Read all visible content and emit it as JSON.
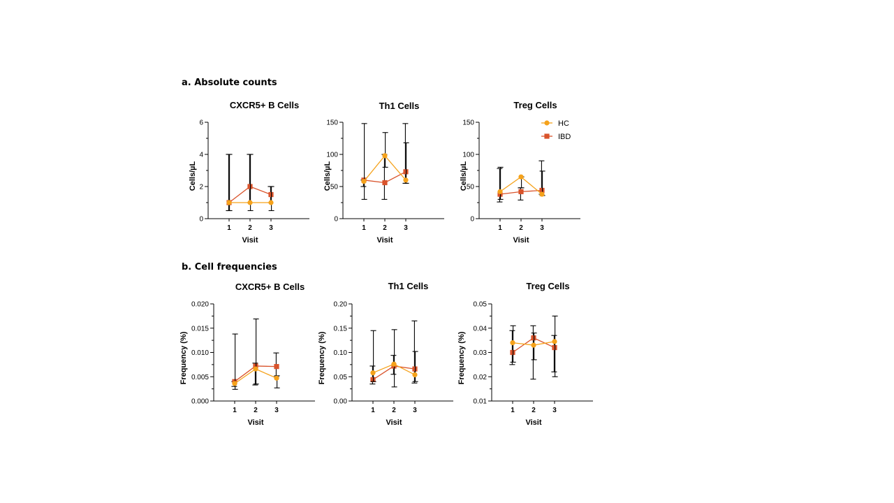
{
  "sections": {
    "a": {
      "label": "a. Absolute counts"
    },
    "b": {
      "label": "b. Cell frequencies"
    }
  },
  "legend": {
    "placement": "top-right",
    "items": [
      {
        "name": "HC",
        "color": "#F5A21B",
        "marker": "circle"
      },
      {
        "name": "IBD",
        "color": "#D9532B",
        "marker": "square"
      }
    ]
  },
  "colors": {
    "HC": "#F5A21B",
    "IBD": "#D9532B",
    "axis": "#000000",
    "errorbar": "#000000"
  },
  "chart_data": [
    {
      "id": "a-b",
      "type": "line",
      "title": "CXCR5+ B Cells",
      "xlabel": "Visit",
      "ylabel": "Cells/µL",
      "x": [
        1,
        2,
        3
      ],
      "ylim": [
        0,
        6
      ],
      "yticks": [
        0,
        2,
        4,
        6
      ],
      "ytick_labels": [
        "0",
        "2",
        "4",
        "6"
      ],
      "grid": false,
      "series": [
        {
          "name": "HC",
          "values": [
            1,
            1,
            1
          ],
          "err_low": [
            0.5,
            0.5,
            0.5
          ],
          "err_high": [
            4,
            4,
            2
          ]
        },
        {
          "name": "IBD",
          "values": [
            1,
            2,
            1.5
          ],
          "err_low": [
            0.5,
            1,
            1
          ],
          "err_high": [
            4,
            4,
            2
          ]
        }
      ]
    },
    {
      "id": "a-th1",
      "type": "line",
      "title": "Th1 Cells",
      "xlabel": "Visit",
      "ylabel": "Cells/µL",
      "x": [
        1,
        2,
        3
      ],
      "ylim": [
        0,
        150
      ],
      "yticks": [
        0,
        50,
        100,
        150
      ],
      "ytick_labels": [
        "0",
        "50",
        "100",
        "150"
      ],
      "grid": false,
      "series": [
        {
          "name": "HC",
          "values": [
            58,
            98,
            60
          ],
          "err_low": [
            30,
            80,
            55
          ],
          "err_high": [
            148,
            134,
            118
          ]
        },
        {
          "name": "IBD",
          "values": [
            60,
            56,
            73
          ],
          "err_low": [
            50,
            30,
            55
          ],
          "err_high": [
            60,
            100,
            148
          ]
        }
      ]
    },
    {
      "id": "a-treg",
      "type": "line",
      "title": "Treg Cells",
      "xlabel": "Visit",
      "ylabel": "Cells/µL",
      "x": [
        1,
        2,
        3
      ],
      "ylim": [
        0,
        150
      ],
      "yticks": [
        0,
        50,
        100,
        150
      ],
      "ytick_labels": [
        "0",
        "50",
        "100",
        "150"
      ],
      "grid": false,
      "series": [
        {
          "name": "HC",
          "values": [
            42,
            65,
            38
          ],
          "err_low": [
            30,
            48,
            36
          ],
          "err_high": [
            80,
            65,
            74
          ]
        },
        {
          "name": "IBD",
          "values": [
            38,
            42,
            44
          ],
          "err_low": [
            26,
            29,
            38
          ],
          "err_high": [
            78,
            48,
            90
          ]
        }
      ]
    },
    {
      "id": "b-b",
      "type": "line",
      "title": "CXCR5+ B Cells",
      "xlabel": "Visit",
      "ylabel": "Frequency (%)",
      "x": [
        1,
        2,
        3
      ],
      "ylim": [
        0,
        0.02
      ],
      "yticks": [
        0,
        0.005,
        0.01,
        0.015,
        0.02
      ],
      "ytick_labels": [
        "0.000",
        "0.005",
        "0.010",
        "0.015",
        "0.020"
      ],
      "grid": false,
      "series": [
        {
          "name": "HC",
          "values": [
            0.0036,
            0.0066,
            0.0047
          ],
          "err_low": [
            0.0024,
            0.0035,
            0.0027
          ],
          "err_high": [
            0.0138,
            0.0169,
            0.0052
          ]
        },
        {
          "name": "IBD",
          "values": [
            0.004,
            0.0072,
            0.0071
          ],
          "err_low": [
            0.003,
            0.0033,
            0.005
          ],
          "err_high": [
            0.004,
            0.0078,
            0.0099
          ]
        }
      ]
    },
    {
      "id": "b-th1",
      "type": "line",
      "title": "Th1 Cells",
      "xlabel": "Visit",
      "ylabel": "Frequency (%)",
      "x": [
        1,
        2,
        3
      ],
      "ylim": [
        0,
        0.2
      ],
      "yticks": [
        0,
        0.05,
        0.1,
        0.15,
        0.2
      ],
      "ytick_labels": [
        "0.00",
        "0.05",
        "0.10",
        "0.15",
        "0.20"
      ],
      "grid": false,
      "series": [
        {
          "name": "HC",
          "values": [
            0.058,
            0.076,
            0.054
          ],
          "err_low": [
            0.04,
            0.029,
            0.04
          ],
          "err_high": [
            0.145,
            0.147,
            0.102
          ]
        },
        {
          "name": "IBD",
          "values": [
            0.044,
            0.072,
            0.066
          ],
          "err_low": [
            0.035,
            0.055,
            0.037
          ],
          "err_high": [
            0.072,
            0.094,
            0.165
          ]
        }
      ]
    },
    {
      "id": "b-treg",
      "type": "line",
      "title": "Treg Cells",
      "xlabel": "Visit",
      "ylabel": "Frequency (%)",
      "x": [
        1,
        2,
        3
      ],
      "ylim": [
        0.01,
        0.05
      ],
      "yticks": [
        0.01,
        0.02,
        0.03,
        0.04,
        0.05
      ],
      "ytick_labels": [
        "0.01",
        "0.02",
        "0.03",
        "0.04",
        "0.05"
      ],
      "grid": false,
      "series": [
        {
          "name": "HC",
          "values": [
            0.034,
            0.033,
            0.0345
          ],
          "err_low": [
            0.026,
            0.027,
            0.02
          ],
          "err_high": [
            0.041,
            0.038,
            0.045
          ]
        },
        {
          "name": "IBD",
          "values": [
            0.03,
            0.036,
            0.032
          ],
          "err_low": [
            0.025,
            0.019,
            0.022
          ],
          "err_high": [
            0.039,
            0.041,
            0.037
          ]
        }
      ]
    }
  ]
}
